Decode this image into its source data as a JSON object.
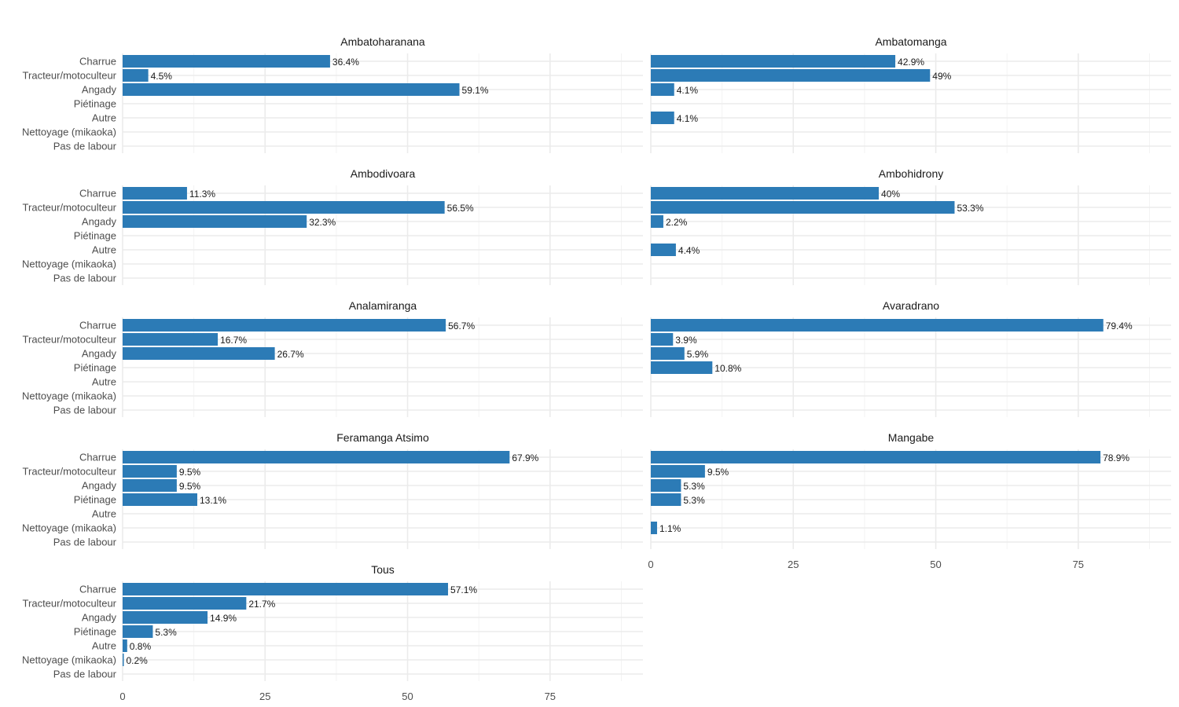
{
  "chart_data": {
    "type": "bar",
    "orientation": "horizontal",
    "layout": "facet-grid",
    "bar_color": "#2c7bb6",
    "categories": [
      "Charrue",
      "Tracteur/motoculteur",
      "Angady",
      "Piétinage",
      "Autre",
      "Nettoyage (mikaoka)",
      "Pas de labour"
    ],
    "xlim": [
      0,
      91.3
    ],
    "x_ticks": [
      0,
      25,
      50,
      75
    ],
    "x_tick_labels": [
      "0",
      "25",
      "50",
      "75"
    ],
    "grid": true,
    "xlabel": "",
    "ylabel": "",
    "panels": [
      {
        "title": "Ambatoharanana",
        "values": [
          36.4,
          4.5,
          59.1,
          null,
          null,
          null,
          null
        ],
        "labels": [
          "36.4%",
          "4.5%",
          "59.1%",
          "",
          "",
          "",
          ""
        ]
      },
      {
        "title": "Ambatomanga",
        "values": [
          42.9,
          49,
          4.1,
          null,
          4.1,
          null,
          null
        ],
        "labels": [
          "42.9%",
          "49%",
          "4.1%",
          "",
          "4.1%",
          "",
          ""
        ]
      },
      {
        "title": "Ambodivoara",
        "values": [
          11.3,
          56.5,
          32.3,
          null,
          null,
          null,
          null
        ],
        "labels": [
          "11.3%",
          "56.5%",
          "32.3%",
          "",
          "",
          "",
          ""
        ]
      },
      {
        "title": "Ambohidrony",
        "values": [
          40,
          53.3,
          2.2,
          null,
          4.4,
          null,
          null
        ],
        "labels": [
          "40%",
          "53.3%",
          "2.2%",
          "",
          "4.4%",
          "",
          ""
        ]
      },
      {
        "title": "Analamiranga",
        "values": [
          56.7,
          16.7,
          26.7,
          null,
          null,
          null,
          null
        ],
        "labels": [
          "56.7%",
          "16.7%",
          "26.7%",
          "",
          "",
          "",
          ""
        ]
      },
      {
        "title": "Avaradrano",
        "values": [
          79.4,
          3.9,
          5.9,
          10.8,
          null,
          null,
          null
        ],
        "labels": [
          "79.4%",
          "3.9%",
          "5.9%",
          "10.8%",
          "",
          "",
          ""
        ]
      },
      {
        "title": "Feramanga Atsimo",
        "values": [
          67.9,
          9.5,
          9.5,
          13.1,
          null,
          null,
          null
        ],
        "labels": [
          "67.9%",
          "9.5%",
          "9.5%",
          "13.1%",
          "",
          "",
          ""
        ]
      },
      {
        "title": "Mangabe",
        "values": [
          78.9,
          9.5,
          5.3,
          5.3,
          null,
          1.1,
          null
        ],
        "labels": [
          "78.9%",
          "9.5%",
          "5.3%",
          "5.3%",
          "",
          "1.1%",
          ""
        ]
      },
      {
        "title": "Tous",
        "values": [
          57.1,
          21.7,
          14.9,
          5.3,
          0.8,
          0.2,
          null
        ],
        "labels": [
          "57.1%",
          "21.7%",
          "14.9%",
          "5.3%",
          "0.8%",
          "0.2%",
          ""
        ]
      }
    ]
  }
}
